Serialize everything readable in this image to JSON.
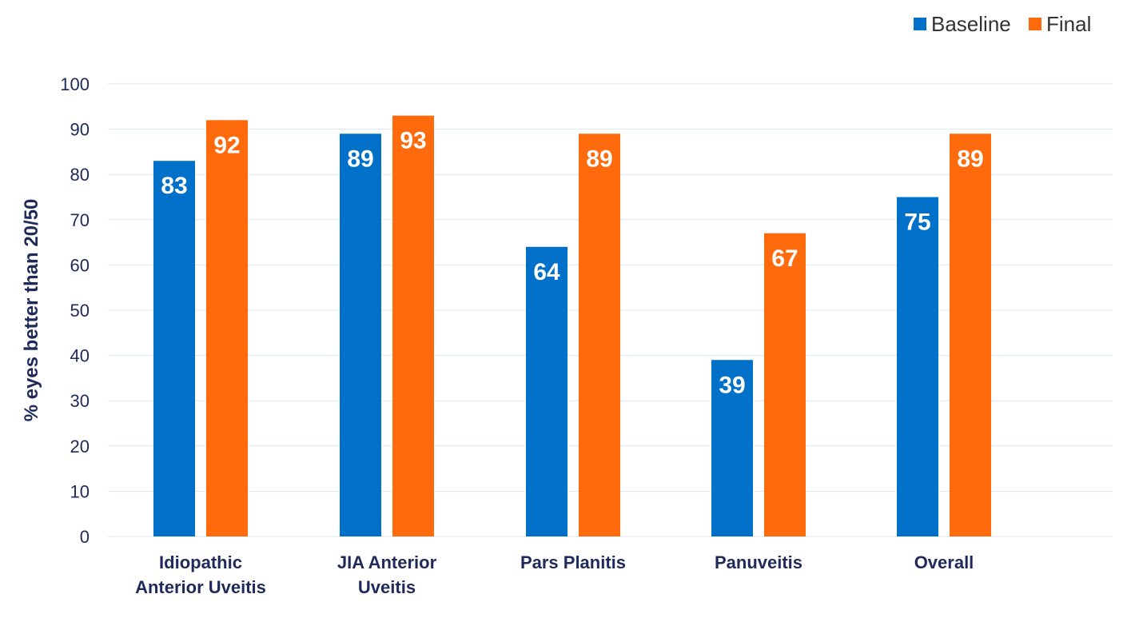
{
  "chart_data": {
    "type": "bar",
    "categories": [
      [
        "Idiopathic",
        "Anterior Uveitis"
      ],
      [
        "JIA Anterior",
        "Uveitis"
      ],
      [
        "Pars Planitis"
      ],
      [
        "Panuveitis"
      ],
      [
        "Overall"
      ]
    ],
    "series": [
      {
        "name": "Baseline",
        "color": "#0070c8",
        "values": [
          83,
          89,
          64,
          39,
          75
        ]
      },
      {
        "name": "Final",
        "color": "#ff6a0d",
        "values": [
          92,
          93,
          89,
          67,
          89
        ]
      }
    ],
    "ylabel": "% eyes better than 20/50",
    "ylim": [
      0,
      100
    ],
    "yticks": [
      0,
      10,
      20,
      30,
      40,
      50,
      60,
      70,
      80,
      90,
      100
    ],
    "grid": true,
    "legend": "top-right"
  }
}
